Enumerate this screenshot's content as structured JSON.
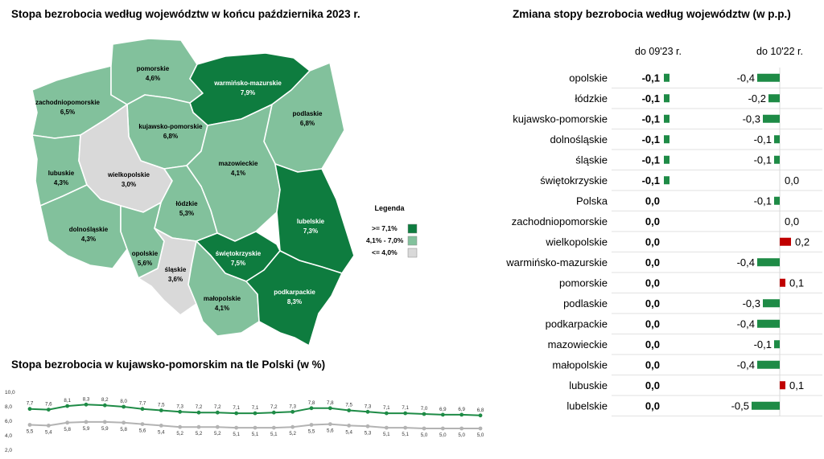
{
  "map": {
    "title": "Stopa bezrobocia według województw w końcu października 2023 r.",
    "legend": {
      "title": "Legenda",
      "items": [
        {
          "label": ">=   7,1%",
          "color": "#0e7c3f"
        },
        {
          "label": "4,1%  - 7,0%",
          "color": "#82c19c"
        },
        {
          "label": "<=   4,0%",
          "color": "#d9d9d9"
        }
      ]
    },
    "regions": [
      {
        "key": "pomorskie",
        "name": "pomorskie",
        "value": "4,6%",
        "cls": "mid"
      },
      {
        "key": "zachodniopomorskie",
        "name": "zachodniopomorskie",
        "value": "6,5%",
        "cls": "mid"
      },
      {
        "key": "warminsko",
        "name": "warmińsko-mazurskie",
        "value": "7,9%",
        "cls": "high"
      },
      {
        "key": "podlaskie",
        "name": "podlaskie",
        "value": "6,8%",
        "cls": "mid"
      },
      {
        "key": "kujawsko",
        "name": "kujawsko-pomorskie",
        "value": "6,8%",
        "cls": "mid"
      },
      {
        "key": "lubuskie",
        "name": "lubuskie",
        "value": "4,3%",
        "cls": "mid"
      },
      {
        "key": "wielkopolskie",
        "name": "wielkopolskie",
        "value": "3,0%",
        "cls": "low"
      },
      {
        "key": "mazowieckie",
        "name": "mazowieckie",
        "value": "4,1%",
        "cls": "mid"
      },
      {
        "key": "lodzkie",
        "name": "łódzkie",
        "value": "5,3%",
        "cls": "mid"
      },
      {
        "key": "lubelskie",
        "name": "lubelskie",
        "value": "7,3%",
        "cls": "high"
      },
      {
        "key": "dolnoslaskie",
        "name": "dolnośląskie",
        "value": "4,3%",
        "cls": "mid"
      },
      {
        "key": "opolskie",
        "name": "opolskie",
        "value": "5,6%",
        "cls": "mid"
      },
      {
        "key": "slaskie",
        "name": "śląskie",
        "value": "3,6%",
        "cls": "low"
      },
      {
        "key": "swietokrzyskie",
        "name": "świętokrzyskie",
        "value": "7,5%",
        "cls": "high"
      },
      {
        "key": "malopolskie",
        "name": "małopolskie",
        "value": "4,1%",
        "cls": "mid"
      },
      {
        "key": "podkarpackie",
        "name": "podkarpackie",
        "value": "8,3%",
        "cls": "high"
      }
    ],
    "colors": {
      "high": "#0e7c3f",
      "mid": "#82c19c",
      "low": "#d9d9d9",
      "highText": "#ffffff",
      "otherText": "#000000"
    }
  },
  "chart_data": [
    {
      "type": "line",
      "title": "Stopa bezrobocia w kujawsko-pomorskim na tle Polski (w %)",
      "y_ticks": [
        "10,0",
        "8,0",
        "6,0",
        "4,0",
        "2,0"
      ],
      "ylim": [
        2,
        10
      ],
      "series": [
        {
          "color": "#1e8b46",
          "values": [
            7.7,
            7.6,
            8.1,
            8.3,
            8.2,
            8.0,
            7.7,
            7.5,
            7.3,
            7.2,
            7.2,
            7.1,
            7.1,
            7.2,
            7.3,
            7.8,
            7.8,
            7.5,
            7.3,
            7.1,
            7.1,
            7.0,
            6.9,
            6.9,
            6.8
          ],
          "labels": [
            "7,7",
            "7,6",
            "8,1",
            "8,3",
            "8,2",
            "8,0",
            "7,7",
            "7,5",
            "7,3",
            "7,2",
            "7,2",
            "7,1",
            "7,1",
            "7,2",
            "7,3",
            "7,8",
            "7,8",
            "7,5",
            "7,3",
            "7,1",
            "7,1",
            "7,0",
            "6,9",
            "6,9",
            "6,8"
          ]
        },
        {
          "color": "#b3b3b3",
          "values": [
            5.5,
            5.4,
            5.8,
            5.9,
            5.9,
            5.8,
            5.6,
            5.4,
            5.2,
            5.2,
            5.2,
            5.1,
            5.1,
            5.1,
            5.2,
            5.5,
            5.6,
            5.4,
            5.3,
            5.1,
            5.1,
            5.0,
            5.0,
            5.0,
            5.0
          ],
          "labels": [
            "5,5",
            "5,4",
            "5,8",
            "5,9",
            "5,9",
            "5,8",
            "5,6",
            "5,4",
            "5,2",
            "5,2",
            "5,2",
            "5,1",
            "5,1",
            "5,1",
            "5,2",
            "5,5",
            "5,6",
            "5,4",
            "5,3",
            "5,1",
            "5,1",
            "5,0",
            "5,0",
            "5,0",
            "5,0"
          ]
        }
      ]
    },
    {
      "type": "bar",
      "title": "Zmiana stopy bezrobocia według województw (w p.p.)",
      "columns": [
        "do 09'23 r.",
        "do 10'22 r."
      ],
      "categories": [
        "opolskie",
        "łódzkie",
        "kujawsko-pomorskie",
        "dolnośląskie",
        "śląskie",
        "świętokrzyskie",
        "Polska",
        "zachodniopomorskie",
        "wielkopolskie",
        "warmińsko-mazurskie",
        "pomorskie",
        "podlaskie",
        "podkarpackie",
        "mazowieckie",
        "małopolskie",
        "lubuskie",
        "lubelskie"
      ],
      "series": [
        {
          "name": "do 09'23 r.",
          "values": [
            -0.1,
            -0.1,
            -0.1,
            -0.1,
            -0.1,
            -0.1,
            0.0,
            0.0,
            0.0,
            0.0,
            0.0,
            0.0,
            0.0,
            0.0,
            0.0,
            0.0,
            0.0
          ],
          "labels": [
            "-0,1",
            "-0,1",
            "-0,1",
            "-0,1",
            "-0,1",
            "-0,1",
            "0,0",
            "0,0",
            "0,0",
            "0,0",
            "0,0",
            "0,0",
            "0,0",
            "0,0",
            "0,0",
            "0,0",
            "0,0"
          ]
        },
        {
          "name": "do 10'22 r.",
          "values": [
            -0.4,
            -0.2,
            -0.3,
            -0.1,
            -0.1,
            0.0,
            -0.1,
            0.0,
            0.2,
            -0.4,
            0.1,
            -0.3,
            -0.4,
            -0.1,
            -0.4,
            0.1,
            -0.5
          ],
          "labels": [
            "-0,4",
            "-0,2",
            "-0,3",
            "-0,1",
            "-0,1",
            "0,0",
            "-0,1",
            "0,0",
            "0,2",
            "-0,4",
            "0,1",
            "-0,3",
            "-0,4",
            "-0,1",
            "-0,4",
            "0,1",
            "-0,5"
          ]
        }
      ],
      "colors": {
        "negative": "#1e8b46",
        "positive": "#c00000",
        "grid": "#d9d9d9"
      }
    }
  ]
}
